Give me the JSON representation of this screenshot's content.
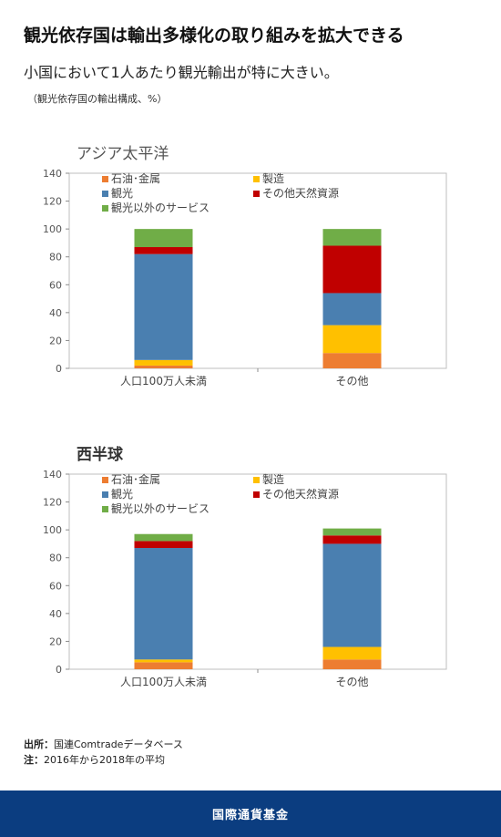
{
  "header": {
    "title": "観光依存国は輸出多様化の取り組みを拡大できる",
    "subtitle": "小国において1人あたり観光輸出が特に大きい。",
    "unit_note": "（観光依存国の輸出構成、%）"
  },
  "legend": [
    {
      "label": "石油･金属",
      "color": "#ed7d31"
    },
    {
      "label": "製造",
      "color": "#ffc000"
    },
    {
      "label": "観光",
      "color": "#4a7fb0"
    },
    {
      "label": "その他天然資源",
      "color": "#c00000"
    },
    {
      "label": "観光以外のサービス",
      "color": "#70ad47"
    }
  ],
  "chart_data": [
    {
      "type": "bar",
      "stacked": true,
      "title": "アジア太平洋",
      "categories": [
        "人口100万人未満",
        "その他"
      ],
      "ylim": [
        0,
        140
      ],
      "yticks": [
        0,
        20,
        40,
        60,
        80,
        100,
        120,
        140
      ],
      "series": [
        {
          "name": "石油･金属",
          "values": [
            2,
            11
          ]
        },
        {
          "name": "製造",
          "values": [
            4,
            20
          ]
        },
        {
          "name": "観光",
          "values": [
            76,
            23
          ]
        },
        {
          "name": "その他天然資源",
          "values": [
            5,
            34
          ]
        },
        {
          "name": "観光以外のサービス",
          "values": [
            13,
            12
          ]
        }
      ]
    },
    {
      "type": "bar",
      "stacked": true,
      "title": "西半球",
      "categories": [
        "人口100万人未満",
        "その他"
      ],
      "ylim": [
        0,
        140
      ],
      "yticks": [
        0,
        20,
        40,
        60,
        80,
        100,
        120,
        140
      ],
      "series": [
        {
          "name": "石油･金属",
          "values": [
            5,
            7
          ]
        },
        {
          "name": "製造",
          "values": [
            2,
            9
          ]
        },
        {
          "name": "観光",
          "values": [
            80,
            74
          ]
        },
        {
          "name": "その他天然資源",
          "values": [
            5,
            6
          ]
        },
        {
          "name": "観光以外のサービス",
          "values": [
            5,
            5
          ]
        }
      ]
    }
  ],
  "notes": {
    "source_label": "出所：",
    "source_text": "国連Comtradeデータベース",
    "note_label": "注：",
    "note_text": "2016年から2018年の平均"
  },
  "footer": {
    "org": "国際通貨基金"
  }
}
